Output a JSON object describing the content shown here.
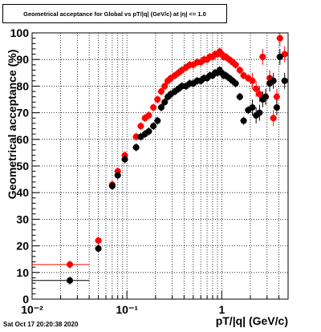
{
  "chart_data": {
    "type": "scatter",
    "title": "Geometrical acceptance for Global vs pT/|q| (GeV/c) at |η| <= 1.0",
    "xlabel": "pT/|q| (GeV/c)",
    "ylabel": "Geometrical acceptance (%)",
    "xscale": "log",
    "xlim": [
      0.01,
      5
    ],
    "ylim": [
      0,
      100
    ],
    "grid": true,
    "x_tick_labels": [
      "10⁻²",
      "10⁻¹",
      "1"
    ],
    "y_tick_labels": [
      "0",
      "10",
      "20",
      "30",
      "40",
      "50",
      "60",
      "70",
      "80",
      "90",
      "100"
    ],
    "series": [
      {
        "color": "#ff0000",
        "points": [
          [
            0.025,
            13
          ],
          [
            0.05,
            22
          ],
          [
            0.07,
            43
          ],
          [
            0.08,
            48
          ],
          [
            0.095,
            54
          ],
          [
            0.125,
            61
          ],
          [
            0.14,
            65
          ],
          [
            0.155,
            68
          ],
          [
            0.17,
            69
          ],
          [
            0.19,
            72
          ],
          [
            0.21,
            75
          ],
          [
            0.23,
            78
          ],
          [
            0.25,
            80
          ],
          [
            0.27,
            82
          ],
          [
            0.29,
            83
          ],
          [
            0.32,
            84
          ],
          [
            0.35,
            85
          ],
          [
            0.38,
            86
          ],
          [
            0.42,
            87
          ],
          [
            0.46,
            88
          ],
          [
            0.5,
            88
          ],
          [
            0.55,
            89
          ],
          [
            0.6,
            89
          ],
          [
            0.65,
            90
          ],
          [
            0.7,
            90
          ],
          [
            0.75,
            91
          ],
          [
            0.8,
            91
          ],
          [
            0.85,
            92
          ],
          [
            0.9,
            92
          ],
          [
            0.95,
            93
          ],
          [
            1.0,
            92
          ],
          [
            1.05,
            91
          ],
          [
            1.1,
            91
          ],
          [
            1.2,
            90
          ],
          [
            1.3,
            89
          ],
          [
            1.4,
            88
          ],
          [
            1.55,
            86
          ],
          [
            1.7,
            84
          ],
          [
            1.9,
            83
          ],
          [
            2.1,
            82
          ],
          [
            2.3,
            79
          ],
          [
            2.5,
            77
          ],
          [
            2.7,
            91
          ],
          [
            2.9,
            76
          ],
          [
            3.2,
            83
          ],
          [
            3.5,
            68
          ],
          [
            3.8,
            76
          ],
          [
            4.1,
            98
          ],
          [
            4.6,
            92
          ]
        ]
      },
      {
        "color": "#000000",
        "points": [
          [
            0.025,
            7
          ],
          [
            0.05,
            19
          ],
          [
            0.07,
            42.5
          ],
          [
            0.08,
            46.5
          ],
          [
            0.095,
            52.5
          ],
          [
            0.125,
            57
          ],
          [
            0.14,
            61
          ],
          [
            0.155,
            62
          ],
          [
            0.17,
            63
          ],
          [
            0.19,
            65
          ],
          [
            0.21,
            67
          ],
          [
            0.23,
            72
          ],
          [
            0.25,
            74
          ],
          [
            0.27,
            76
          ],
          [
            0.29,
            77
          ],
          [
            0.32,
            78
          ],
          [
            0.35,
            79
          ],
          [
            0.38,
            80
          ],
          [
            0.42,
            80
          ],
          [
            0.46,
            81
          ],
          [
            0.5,
            81
          ],
          [
            0.55,
            82
          ],
          [
            0.6,
            82
          ],
          [
            0.65,
            83
          ],
          [
            0.7,
            83
          ],
          [
            0.75,
            84
          ],
          [
            0.8,
            84
          ],
          [
            0.85,
            85
          ],
          [
            0.9,
            85
          ],
          [
            0.95,
            86
          ],
          [
            1.0,
            85
          ],
          [
            1.05,
            84
          ],
          [
            1.1,
            84
          ],
          [
            1.2,
            83
          ],
          [
            1.3,
            82
          ],
          [
            1.4,
            81
          ],
          [
            1.55,
            76
          ],
          [
            1.7,
            67
          ],
          [
            1.9,
            71
          ],
          [
            2.1,
            72
          ],
          [
            2.3,
            69
          ],
          [
            2.5,
            70
          ],
          [
            2.7,
            75
          ],
          [
            2.9,
            76
          ],
          [
            3.2,
            81
          ],
          [
            3.5,
            82
          ],
          [
            3.8,
            72
          ],
          [
            4.1,
            91
          ],
          [
            4.6,
            82
          ]
        ]
      }
    ]
  },
  "footer": {
    "timestamp": "Sat Oct 17 20:20:38 2020"
  }
}
